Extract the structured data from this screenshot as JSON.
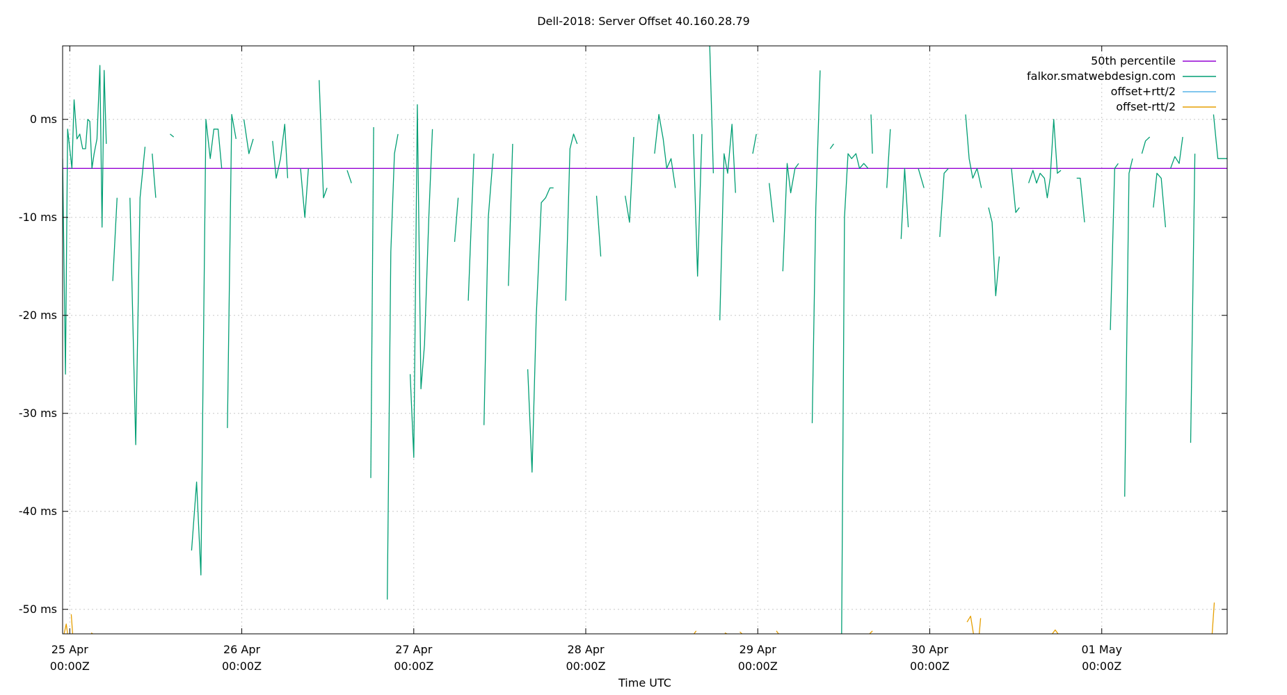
{
  "chart_data": {
    "type": "line",
    "title": "Dell-2018: Server Offset 40.160.28.79",
    "xlabel": "Time UTC",
    "ylabel": "",
    "x_unit": "hours since 25 Apr 00:00Z",
    "xlim": [
      -1,
      161.5
    ],
    "ylim": [
      -52.5,
      7.5
    ],
    "y_ticks": [
      0,
      -10,
      -20,
      -30,
      -40,
      -50
    ],
    "y_tick_labels": [
      "0 ms",
      "-10 ms",
      "-20 ms",
      "-30 ms",
      "-40 ms",
      "-50 ms"
    ],
    "x_ticks": [
      0,
      24,
      48,
      72,
      96,
      120,
      144
    ],
    "x_tick_labels": [
      {
        "day": "25 Apr",
        "time": "00:00Z"
      },
      {
        "day": "26 Apr",
        "time": "00:00Z"
      },
      {
        "day": "27 Apr",
        "time": "00:00Z"
      },
      {
        "day": "28 Apr",
        "time": "00:00Z"
      },
      {
        "day": "29 Apr",
        "time": "00:00Z"
      },
      {
        "day": "30 Apr",
        "time": "00:00Z"
      },
      {
        "day": "01 May",
        "time": "00:00Z"
      }
    ],
    "grid": true,
    "legend_position": "top-right",
    "series": [
      {
        "name": "50th percentile",
        "color": "#9400d3",
        "segments": [
          [
            [
              -1,
              -5
            ],
            [
              161.5,
              -5
            ]
          ]
        ]
      },
      {
        "name": "falkor.smatwebdesign.com",
        "color": "#009e73",
        "segments": [
          [
            [
              -1,
              -4
            ],
            [
              -0.6,
              -26
            ],
            [
              -0.3,
              -1
            ],
            [
              0,
              -3
            ],
            [
              0.3,
              -5
            ],
            [
              0.6,
              2
            ],
            [
              1,
              -2
            ],
            [
              1.4,
              -1.5
            ],
            [
              1.8,
              -3
            ],
            [
              2.2,
              -3
            ],
            [
              2.5,
              0
            ],
            [
              2.8,
              -0.2
            ],
            [
              3.1,
              -5
            ],
            [
              3.4,
              -3.5
            ],
            [
              3.8,
              -2
            ],
            [
              4.2,
              5.5
            ],
            [
              4.5,
              -11
            ],
            [
              4.8,
              5
            ],
            [
              5.1,
              -2.5
            ]
          ],
          [
            [
              6,
              -16.5
            ],
            [
              6.6,
              -8
            ]
          ],
          [
            [
              8.4,
              -8
            ],
            [
              9.2,
              -33.2
            ],
            [
              9.8,
              -8
            ],
            [
              10.5,
              -2.8
            ]
          ],
          [
            [
              11.5,
              -3.5
            ],
            [
              12,
              -8
            ]
          ],
          [
            [
              14,
              -1.5
            ],
            [
              14.5,
              -1.8
            ]
          ],
          [
            [
              17,
              -44
            ],
            [
              17.7,
              -37
            ],
            [
              18.3,
              -46.5
            ],
            [
              19,
              0
            ],
            [
              19.6,
              -4
            ],
            [
              20.1,
              -1
            ],
            [
              20.7,
              -1
            ],
            [
              21.2,
              -5
            ]
          ],
          [
            [
              22,
              -31.5
            ],
            [
              22.6,
              0.5
            ],
            [
              23.2,
              -2
            ]
          ],
          [
            [
              24.3,
              0
            ],
            [
              25,
              -3.5
            ],
            [
              25.6,
              -2
            ]
          ],
          [
            [
              28.3,
              -2.2
            ],
            [
              28.8,
              -6
            ],
            [
              29.4,
              -4
            ],
            [
              30,
              -0.5
            ],
            [
              30.4,
              -6
            ]
          ],
          [
            [
              32.2,
              -5
            ],
            [
              32.8,
              -10
            ],
            [
              33.3,
              -5
            ]
          ],
          [
            [
              34.8,
              4
            ],
            [
              35.4,
              -8
            ],
            [
              35.9,
              -7
            ]
          ],
          [
            [
              38.7,
              -5.2
            ],
            [
              39.3,
              -6.5
            ]
          ],
          [
            [
              42,
              -36.6
            ],
            [
              42.4,
              -0.8
            ]
          ],
          [
            [
              44.3,
              -49
            ],
            [
              44.8,
              -13.5
            ],
            [
              45.3,
              -3.5
            ],
            [
              45.8,
              -1.5
            ]
          ],
          [
            [
              47.5,
              -26
            ],
            [
              48,
              -34.5
            ],
            [
              48.5,
              1.5
            ],
            [
              49,
              -27.5
            ],
            [
              49.5,
              -23
            ],
            [
              50.1,
              -10
            ],
            [
              50.6,
              -1
            ]
          ],
          [
            [
              53.7,
              -12.5
            ],
            [
              54.2,
              -8
            ]
          ],
          [
            [
              55.6,
              -18.5
            ],
            [
              56.4,
              -3.5
            ]
          ],
          [
            [
              57.8,
              -31.2
            ],
            [
              58.4,
              -10
            ],
            [
              59.1,
              -3.5
            ]
          ],
          [
            [
              61.2,
              -17
            ],
            [
              61.8,
              -2.5
            ]
          ],
          [
            [
              63.9,
              -25.5
            ],
            [
              64.5,
              -36
            ],
            [
              65.1,
              -20
            ],
            [
              65.8,
              -8.5
            ],
            [
              66.4,
              -8
            ],
            [
              67,
              -7
            ],
            [
              67.5,
              -7
            ]
          ],
          [
            [
              69.2,
              -18.5
            ],
            [
              69.8,
              -3
            ],
            [
              70.3,
              -1.5
            ],
            [
              70.8,
              -2.5
            ]
          ],
          [
            [
              73.5,
              -7.8
            ],
            [
              74.1,
              -14
            ]
          ],
          [
            [
              77.5,
              -7.8
            ],
            [
              78.1,
              -10.5
            ],
            [
              78.7,
              -1.8
            ]
          ],
          [
            [
              81.6,
              -3.5
            ],
            [
              82.2,
              0.5
            ],
            [
              82.8,
              -2
            ],
            [
              83.3,
              -5
            ],
            [
              83.9,
              -4
            ],
            [
              84.5,
              -7
            ]
          ],
          [
            [
              87,
              -1.5
            ],
            [
              87.6,
              -16
            ],
            [
              88.2,
              -1.5
            ]
          ],
          [
            [
              89.3,
              7.5
            ],
            [
              89.8,
              -5.5
            ]
          ],
          [
            [
              90.7,
              -20.5
            ],
            [
              91.3,
              -3.5
            ],
            [
              91.8,
              -5.5
            ],
            [
              92.4,
              -0.5
            ],
            [
              92.9,
              -7.5
            ]
          ],
          [
            [
              95.3,
              -3.5
            ],
            [
              95.8,
              -1.5
            ]
          ],
          [
            [
              97.6,
              -6.5
            ],
            [
              98.2,
              -10.5
            ]
          ],
          [
            [
              99.5,
              -15.5
            ],
            [
              100.1,
              -4.5
            ],
            [
              100.6,
              -7.5
            ],
            [
              101.2,
              -5
            ],
            [
              101.7,
              -4.5
            ]
          ],
          [
            [
              103.6,
              -31
            ],
            [
              104.1,
              -9
            ],
            [
              104.7,
              5
            ]
          ],
          [
            [
              106.1,
              -3
            ],
            [
              106.6,
              -2.5
            ]
          ],
          [
            [
              107.7,
              -52.5
            ],
            [
              108.1,
              -10
            ],
            [
              108.6,
              -3.5
            ],
            [
              109.1,
              -4
            ],
            [
              109.7,
              -3.5
            ],
            [
              110.2,
              -5
            ],
            [
              110.8,
              -4.5
            ],
            [
              111.4,
              -5
            ]
          ],
          [
            [
              111.8,
              0.5
            ],
            [
              112,
              -3.5
            ]
          ],
          [
            [
              114,
              -7
            ],
            [
              114.5,
              -1
            ]
          ],
          [
            [
              116,
              -12.2
            ],
            [
              116.5,
              -5
            ],
            [
              117,
              -11
            ]
          ],
          [
            [
              118.4,
              -5
            ],
            [
              119.2,
              -7
            ]
          ],
          [
            [
              121.4,
              -12
            ],
            [
              122,
              -5.5
            ],
            [
              122.6,
              -5
            ]
          ],
          [
            [
              125,
              0.5
            ],
            [
              125.5,
              -4
            ],
            [
              126,
              -6
            ],
            [
              126.6,
              -5
            ],
            [
              127.2,
              -7
            ]
          ],
          [
            [
              128.2,
              -9
            ],
            [
              128.7,
              -10.5
            ],
            [
              129.2,
              -18
            ],
            [
              129.7,
              -14
            ]
          ],
          [
            [
              131.4,
              -5
            ],
            [
              132,
              -9.5
            ],
            [
              132.5,
              -9
            ]
          ],
          [
            [
              133.8,
              -6.5
            ],
            [
              134.4,
              -5.2
            ],
            [
              134.9,
              -6.5
            ],
            [
              135.4,
              -5.5
            ],
            [
              136,
              -6
            ],
            [
              136.4,
              -8
            ],
            [
              136.8,
              -6
            ],
            [
              137.3,
              0
            ],
            [
              137.8,
              -5.5
            ],
            [
              138.3,
              -5.2
            ]
          ],
          [
            [
              140.5,
              -6
            ],
            [
              141,
              -6
            ],
            [
              141.6,
              -10.5
            ]
          ],
          [
            [
              145.2,
              -21.5
            ],
            [
              145.8,
              -5
            ],
            [
              146.3,
              -4.5
            ]
          ],
          [
            [
              147.2,
              -38.5
            ],
            [
              147.8,
              -5.5
            ],
            [
              148.3,
              -4
            ]
          ],
          [
            [
              149.6,
              -3.5
            ],
            [
              150.1,
              -2.2
            ],
            [
              150.7,
              -1.8
            ]
          ],
          [
            [
              151.2,
              -9
            ],
            [
              151.7,
              -5.5
            ],
            [
              152.3,
              -6
            ],
            [
              152.9,
              -11
            ]
          ],
          [
            [
              153.6,
              -5
            ],
            [
              154.2,
              -3.8
            ],
            [
              154.8,
              -4.5
            ],
            [
              155.3,
              -1.8
            ]
          ],
          [
            [
              156.4,
              -33
            ],
            [
              157,
              -3.5
            ]
          ],
          [
            [
              159.6,
              0.5
            ],
            [
              160.2,
              -4
            ],
            [
              161.5,
              -4
            ]
          ]
        ]
      },
      {
        "name": "offset+rtt/2",
        "color": "#56b4e9",
        "segments": []
      },
      {
        "name": "offset-rtt/2",
        "color": "#e69f00",
        "segments": [
          [
            [
              -0.8,
              -52.5
            ],
            [
              -0.5,
              -51.5
            ],
            [
              -0.3,
              -52.5
            ]
          ],
          [
            [
              0.2,
              -50.5
            ],
            [
              0.4,
              -52.5
            ]
          ],
          [
            [
              3,
              -52.4
            ],
            [
              3.2,
              -52.5
            ]
          ],
          [
            [
              87.1,
              -52.5
            ],
            [
              87.4,
              -52.2
            ]
          ],
          [
            [
              91.4,
              -52.4
            ],
            [
              91.7,
              -52.5
            ]
          ],
          [
            [
              93.5,
              -52.3
            ],
            [
              93.8,
              -52.5
            ]
          ],
          [
            [
              98.6,
              -52.2
            ],
            [
              98.9,
              -52.5
            ]
          ],
          [
            [
              111.6,
              -52.5
            ],
            [
              112,
              -52.2
            ]
          ],
          [
            [
              125.2,
              -51.3
            ],
            [
              125.7,
              -50.7
            ],
            [
              126.1,
              -52.5
            ]
          ],
          [
            [
              126.9,
              -52.5
            ],
            [
              127.1,
              -50.9
            ]
          ],
          [
            [
              137.1,
              -52.5
            ],
            [
              137.5,
              -52.1
            ],
            [
              137.9,
              -52.5
            ]
          ],
          [
            [
              159.4,
              -52.5
            ],
            [
              159.7,
              -49.3
            ]
          ]
        ]
      }
    ]
  }
}
